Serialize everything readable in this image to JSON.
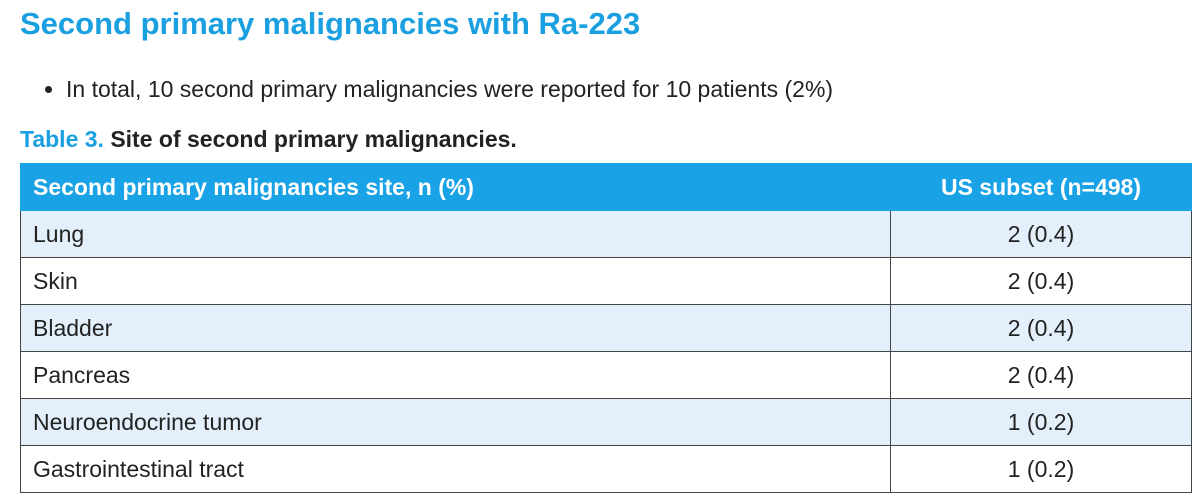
{
  "title": "Second primary malignancies with Ra-223",
  "bullets": [
    "In total, 10 second primary malignancies were reported for 10 patients (2%)"
  ],
  "table": {
    "caption": {
      "label": "Table 3.",
      "text": "Site of second primary malignancies."
    },
    "header": [
      "Second primary malignancies site, n (%)",
      "US subset (n=498)"
    ],
    "rows": [
      [
        "Lung",
        "2 (0.4)"
      ],
      [
        "Skin",
        "2 (0.4)"
      ],
      [
        "Bladder",
        "2 (0.4)"
      ],
      [
        "Pancreas",
        "2 (0.4)"
      ],
      [
        "Neuroendocrine tumor",
        "1 (0.2)"
      ],
      [
        "Gastrointestinal tract",
        "1 (0.2)"
      ]
    ]
  }
}
